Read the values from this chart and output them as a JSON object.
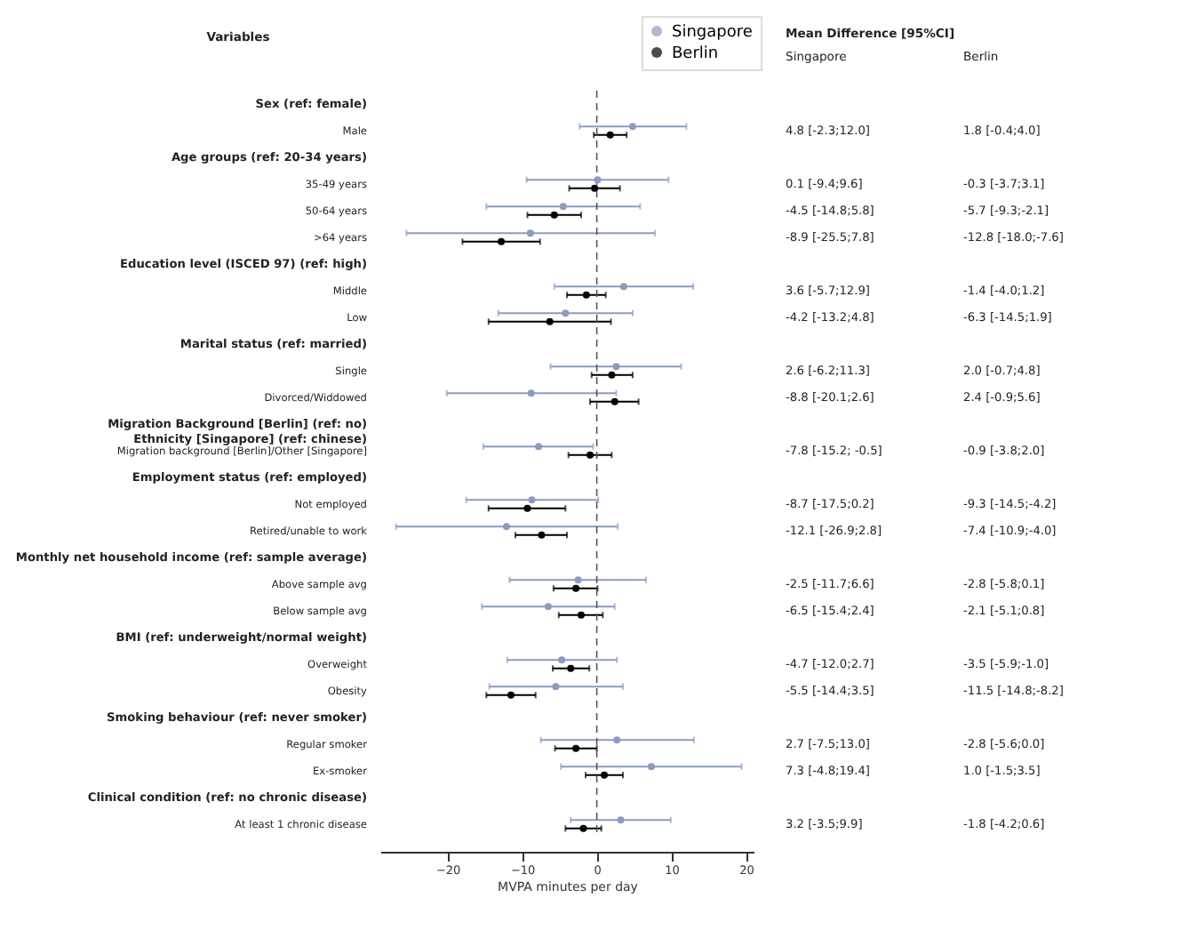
{
  "chart_data": {
    "type": "scatter",
    "orientation": "horizontal",
    "xlabel": "MVPA minutes per day",
    "categories": [
      "Sex (ref: female)",
      "Male",
      "Age groups (ref: 20-34 years)",
      "35-49 years",
      "50-64 years",
      ">64 years",
      "Education level (ISCED 97) (ref: high)",
      "Middle",
      "Low",
      "Marital status (ref: married)",
      "Single",
      "Divorced/Widdowed",
      "Migration Background [Berlin] (ref: no)\nEthnicity [Singapore] (ref: chinese)",
      "Migration background [Berlin]/Other [Singapore]",
      "Employment status (ref: employed)",
      "Not employed",
      "Retired/unable to work",
      "Monthly net household income (ref: sample average)",
      "Above sample avg",
      "Below sample avg",
      "BMI (ref: underweight/normal weight)",
      "Overweight",
      "Obesity",
      "Smoking behaviour (ref: never smoker)",
      "Regular smoker",
      "Ex-smoker",
      "Clinical condition (ref: no chronic disease)",
      "At least 1 chronic disease"
    ],
    "series": [
      {
        "name": "Singapore",
        "color": "#8c9bc0",
        "values": [
          null,
          4.8,
          null,
          0.1,
          -4.5,
          -8.9,
          null,
          3.6,
          -4.2,
          null,
          2.6,
          -8.8,
          null,
          -7.8,
          null,
          -8.7,
          -12.1,
          null,
          -2.5,
          -6.5,
          null,
          -4.7,
          -5.5,
          null,
          2.7,
          7.3,
          null,
          3.2
        ],
        "errors": [
          null,
          [
            -2.3,
            12.0
          ],
          null,
          [
            -9.4,
            9.6
          ],
          [
            -14.8,
            5.8
          ],
          [
            -25.5,
            7.8
          ],
          null,
          [
            -5.7,
            12.9
          ],
          [
            -13.2,
            4.8
          ],
          null,
          [
            -6.2,
            11.3
          ],
          [
            -20.1,
            2.6
          ],
          null,
          [
            -15.2,
            -0.5
          ],
          null,
          [
            -17.5,
            0.2
          ],
          [
            -26.9,
            2.8
          ],
          null,
          [
            -11.7,
            6.6
          ],
          [
            -15.4,
            2.4
          ],
          null,
          [
            -12.0,
            2.7
          ],
          [
            -14.4,
            3.5
          ],
          null,
          [
            -7.5,
            13.0
          ],
          [
            -4.8,
            19.4
          ],
          null,
          [
            -3.5,
            9.9
          ]
        ]
      },
      {
        "name": "Berlin",
        "color": "#000000",
        "values": [
          null,
          1.8,
          null,
          -0.3,
          -5.7,
          -12.8,
          null,
          -1.4,
          -6.3,
          null,
          2.0,
          2.4,
          null,
          -0.9,
          null,
          -9.3,
          -7.4,
          null,
          -2.8,
          -2.1,
          null,
          -3.5,
          -11.5,
          null,
          -2.8,
          1.0,
          null,
          -1.8
        ],
        "errors": [
          null,
          [
            -0.4,
            4.0
          ],
          null,
          [
            -3.7,
            3.1
          ],
          [
            -9.3,
            -2.1
          ],
          [
            -18.0,
            -7.6
          ],
          null,
          [
            -4.0,
            1.2
          ],
          [
            -14.5,
            1.9
          ],
          null,
          [
            -0.7,
            4.8
          ],
          [
            -0.9,
            5.6
          ],
          null,
          [
            -3.8,
            2.0
          ],
          null,
          [
            -14.5,
            -4.2
          ],
          [
            -10.9,
            -4.0
          ],
          null,
          [
            -5.8,
            0.1
          ],
          [
            -5.1,
            0.8
          ],
          null,
          [
            -5.9,
            -1.0
          ],
          [
            -14.8,
            -8.2
          ],
          null,
          [
            -5.6,
            0.0
          ],
          [
            -1.5,
            3.5
          ],
          null,
          [
            -4.2,
            0.6
          ]
        ]
      }
    ],
    "xlim": [
      -29,
      21
    ],
    "xticks": [
      -20,
      -10,
      0,
      10,
      20
    ],
    "ref_lines": [
      {
        "axis": "x",
        "value": 0,
        "line_style": "dashed"
      }
    ],
    "annotations": [
      "Variables",
      "Mean Difference [95%CI]",
      "Singapore",
      "Berlin",
      "4.8 [-2.3;12.0]",
      "0.1 [-9.4;9.6]",
      "-4.5 [-14.8;5.8]",
      "-8.9 [-25.5;7.8]",
      "3.6 [-5.7;12.9]",
      "-4.2 [-13.2;4.8]",
      "2.6 [-6.2;11.3]",
      "-8.8 [-20.1;2.6]",
      "-7.8 [-15.2; -0.5]",
      "-8.7 [-17.5;0.2]",
      "-12.1 [-26.9;2.8]",
      "-2.5 [-11.7;6.6]",
      "-6.5 [-15.4;2.4]",
      "-4.7 [-12.0;2.7]",
      "-5.5 [-14.4;3.5]",
      "2.7 [-7.5;13.0]",
      "7.3 [-4.8;19.4]",
      "3.2 [-3.5;9.9]",
      "1.8 [-0.4;4.0]",
      "-0.3 [-3.7;3.1]",
      "-5.7 [-9.3;-2.1]",
      "-12.8 [-18.0;-7.6]",
      "-1.4 [-4.0;1.2]",
      "-6.3 [-14.5;1.9]",
      "2.0 [-0.7;4.8]",
      "2.4 [-0.9;5.6]",
      "-0.9 [-3.8;2.0]",
      "-9.3 [-14.5;-4.2]",
      "-7.4 [-10.9;-4.0]",
      "-2.8 [-5.8;0.1]",
      "-2.1 [-5.1;0.8]",
      "-3.5 [-5.9;-1.0]",
      "-11.5 [-14.8;-8.2]",
      "-2.8 [-5.6;0.0]",
      "1.0 [-1.5;3.5]",
      "-1.8 [-4.2;0.6]"
    ],
    "legend": "top right",
    "marker": "circle",
    "grid": false
  }
}
